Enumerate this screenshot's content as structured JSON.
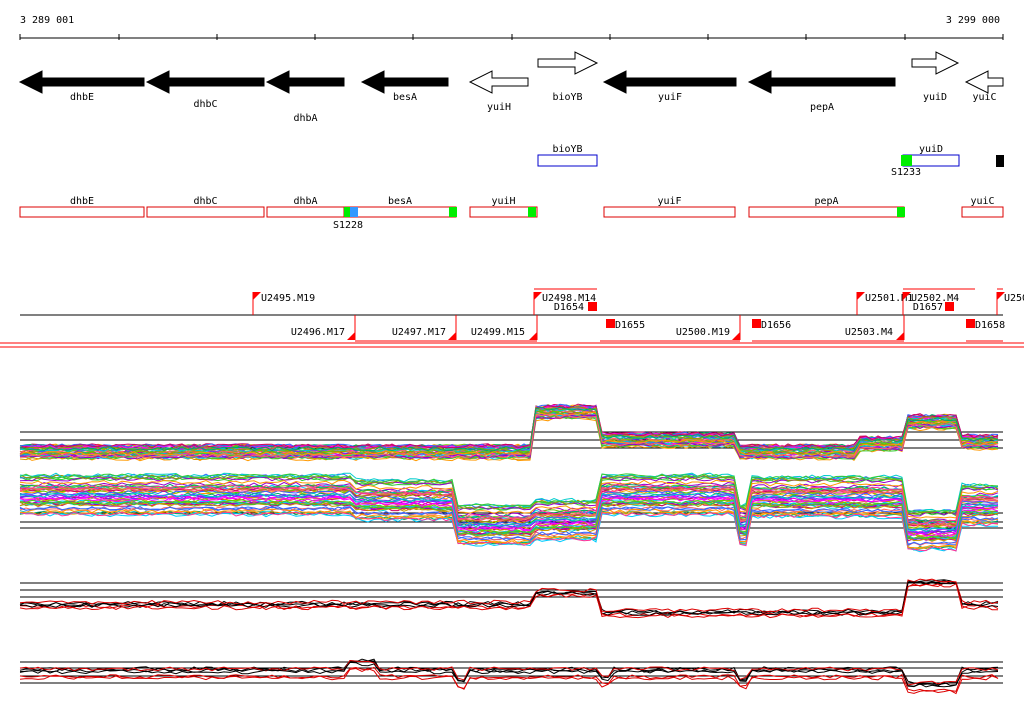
{
  "ruler": {
    "start": "3 289 001",
    "end": "3 299 000"
  },
  "genes": [
    {
      "label": "dhbE",
      "strand": "-",
      "filled": true
    },
    {
      "label": "dhbC",
      "strand": "-",
      "filled": true
    },
    {
      "label": "dhbA",
      "strand": "-",
      "filled": true
    },
    {
      "label": "besA",
      "strand": "-",
      "filled": true
    },
    {
      "label": "yuiH",
      "strand": "-",
      "filled": false
    },
    {
      "label": "bioYB",
      "strand": "+",
      "filled": false
    },
    {
      "label": "yuiF",
      "strand": "-",
      "filled": true
    },
    {
      "label": "pepA",
      "strand": "-",
      "filled": true
    },
    {
      "label": "yuiD",
      "strand": "+",
      "filled": false
    },
    {
      "label": "yuiC",
      "strand": "-",
      "filled": false
    }
  ],
  "forward_transcripts": [
    {
      "label": "bioYB"
    },
    {
      "label": "yuiD"
    }
  ],
  "forward_sites": [
    {
      "label": "S1233"
    }
  ],
  "reverse_transcripts": [
    {
      "label": "dhbE"
    },
    {
      "label": "dhbC"
    },
    {
      "label": "dhbA"
    },
    {
      "label": "besA"
    },
    {
      "label": "yuiH"
    },
    {
      "label": "yuiF"
    },
    {
      "label": "pepA"
    },
    {
      "label": "yuiC"
    }
  ],
  "reverse_sites": [
    {
      "label": "S1228"
    }
  ],
  "segments_top": [
    {
      "label": "U2495.M19"
    },
    {
      "label": "U2498.M14"
    },
    {
      "label": "D1654"
    },
    {
      "label": "U2501.M1"
    },
    {
      "label": "U2502.M4"
    },
    {
      "label": "D1657"
    },
    {
      "label": "U250"
    }
  ],
  "segments_bottom": [
    {
      "label": "U2496.M17"
    },
    {
      "label": "U2497.M17"
    },
    {
      "label": "U2499.M15"
    },
    {
      "label": "D1655"
    },
    {
      "label": "U2500.M19"
    },
    {
      "label": "D1656"
    },
    {
      "label": "U2503.M4"
    },
    {
      "label": "D1658"
    }
  ],
  "colors": {
    "gene_fill": "#000000",
    "transcript_rev": "#dd0000",
    "transcript_fwd": "#0000cc",
    "site": "#00ee00",
    "site_alt": "#3399ff",
    "segment": "#ff0000",
    "signal_mean_fwd": "#000000",
    "signal_mean_rev": "#dd0000"
  }
}
